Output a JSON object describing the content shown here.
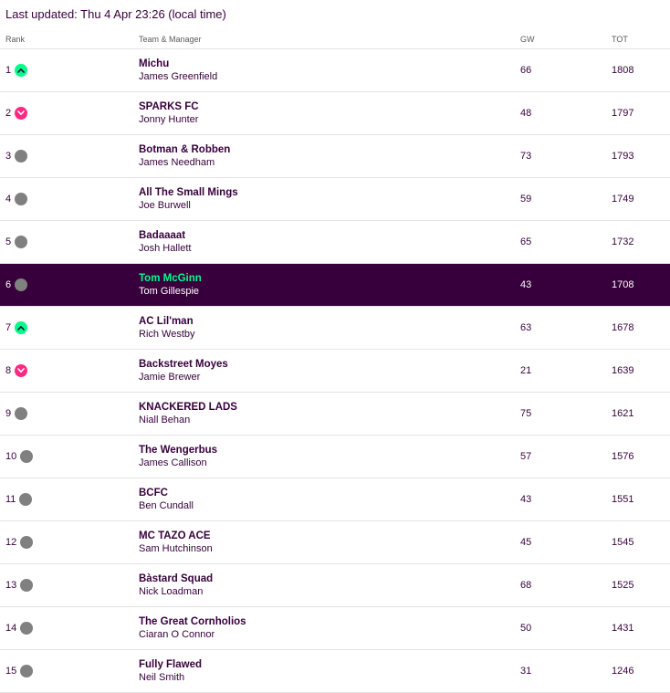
{
  "last_updated": "Last updated: Thu 4 Apr 23:26 (local time)",
  "columns": {
    "rank": "Rank",
    "team": "Team & Manager",
    "gw": "GW",
    "tot": "TOT"
  },
  "colors": {
    "primary": "#37003c",
    "up": "#00fc8a",
    "down": "#ff2882",
    "same": "#808080"
  },
  "rows": [
    {
      "rank": "1",
      "movement": "up",
      "team": "Michu",
      "manager": "James Greenfield",
      "gw": "66",
      "tot": "1808",
      "highlight": false
    },
    {
      "rank": "2",
      "movement": "down",
      "team": "SPARKS FC",
      "manager": "Jonny Hunter",
      "gw": "48",
      "tot": "1797",
      "highlight": false
    },
    {
      "rank": "3",
      "movement": "same",
      "team": "Botman & Robben",
      "manager": "James Needham",
      "gw": "73",
      "tot": "1793",
      "highlight": false
    },
    {
      "rank": "4",
      "movement": "same",
      "team": "All The Small Mings",
      "manager": "Joe Burwell",
      "gw": "59",
      "tot": "1749",
      "highlight": false
    },
    {
      "rank": "5",
      "movement": "same",
      "team": "Badaaaat",
      "manager": "Josh Hallett",
      "gw": "65",
      "tot": "1732",
      "highlight": false
    },
    {
      "rank": "6",
      "movement": "same",
      "team": "Tom McGinn",
      "manager": "Tom Gillespie",
      "gw": "43",
      "tot": "1708",
      "highlight": true
    },
    {
      "rank": "7",
      "movement": "up",
      "team": "AC Lil'man",
      "manager": "Rich Westby",
      "gw": "63",
      "tot": "1678",
      "highlight": false
    },
    {
      "rank": "8",
      "movement": "down",
      "team": "Backstreet Moyes",
      "manager": "Jamie Brewer",
      "gw": "21",
      "tot": "1639",
      "highlight": false
    },
    {
      "rank": "9",
      "movement": "same",
      "team": "KNACKERED LADS",
      "manager": "Niall Behan",
      "gw": "75",
      "tot": "1621",
      "highlight": false
    },
    {
      "rank": "10",
      "movement": "same",
      "team": "The Wengerbus",
      "manager": "James Callison",
      "gw": "57",
      "tot": "1576",
      "highlight": false
    },
    {
      "rank": "11",
      "movement": "same",
      "team": "BCFC",
      "manager": "Ben Cundall",
      "gw": "43",
      "tot": "1551",
      "highlight": false
    },
    {
      "rank": "12",
      "movement": "same",
      "team": "MC TAZO ACE",
      "manager": "Sam Hutchinson",
      "gw": "45",
      "tot": "1545",
      "highlight": false
    },
    {
      "rank": "13",
      "movement": "same",
      "team": "Bàstard Squad",
      "manager": "Nick Loadman",
      "gw": "68",
      "tot": "1525",
      "highlight": false
    },
    {
      "rank": "14",
      "movement": "same",
      "team": "The Great Cornholios",
      "manager": "Ciaran O Connor",
      "gw": "50",
      "tot": "1431",
      "highlight": false
    },
    {
      "rank": "15",
      "movement": "same",
      "team": "Fully Flawed",
      "manager": "Neil Smith",
      "gw": "31",
      "tot": "1246",
      "highlight": false
    }
  ]
}
